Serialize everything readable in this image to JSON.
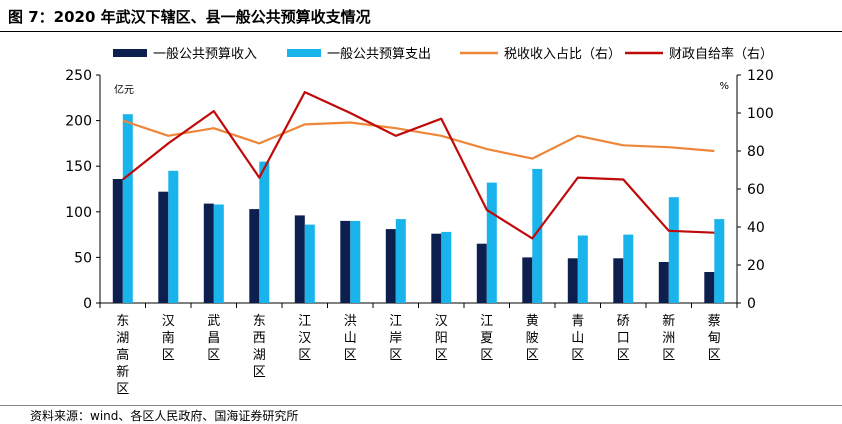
{
  "page": {
    "title": "图 7：2020 年武汉下辖区、县一般公共预算收支情况",
    "source": "资料来源：wind、各区人民政府、国海证券研究所"
  },
  "chart_data": {
    "type": "bar",
    "title": "2020 年武汉下辖区、县一般公共预算收支情况",
    "categories": [
      "东湖高新区",
      "汉南区",
      "武昌区",
      "东西湖区",
      "江汉区",
      "洪山区",
      "江岸区",
      "汉阳区",
      "江夏区",
      "黄陂区",
      "青山区",
      "硚口区",
      "新洲区",
      "蔡甸区"
    ],
    "category_labels": [
      [
        "东",
        "湖",
        "高",
        "新",
        "区"
      ],
      [
        "汉",
        "南",
        "区"
      ],
      [
        "武",
        "昌",
        "区"
      ],
      [
        "东",
        "西",
        "湖",
        "区"
      ],
      [
        "江",
        "汉",
        "区"
      ],
      [
        "洪",
        "山",
        "区"
      ],
      [
        "江",
        "岸",
        "区"
      ],
      [
        "汉",
        "阳",
        "区"
      ],
      [
        "江",
        "夏",
        "区"
      ],
      [
        "黄",
        "陂",
        "区"
      ],
      [
        "青",
        "山",
        "区"
      ],
      [
        "硚",
        "口",
        "区"
      ],
      [
        "新",
        "洲",
        "区"
      ],
      [
        "蔡",
        "甸",
        "区"
      ]
    ],
    "ylabel_left": "亿元",
    "ylabel_right": "%",
    "ylim_left": [
      0,
      250
    ],
    "ylim_right": [
      0,
      120
    ],
    "yticks_left": [
      0,
      50,
      100,
      150,
      200,
      250
    ],
    "yticks_right": [
      0,
      20,
      40,
      60,
      80,
      100,
      120
    ],
    "legend_position": "top",
    "grid": false,
    "series": [
      {
        "name": "一般公共预算收入",
        "type": "bar",
        "axis": "left",
        "color": "#0d1f4f",
        "values": [
          136,
          122,
          109,
          103,
          96,
          90,
          81,
          76,
          65,
          50,
          49,
          49,
          45,
          34
        ]
      },
      {
        "name": "一般公共预算支出",
        "type": "bar",
        "axis": "left",
        "color": "#19b4ec",
        "values": [
          207,
          145,
          108,
          155,
          86,
          90,
          92,
          78,
          132,
          147,
          74,
          75,
          116,
          92
        ]
      },
      {
        "name": "税收收入占比（右）",
        "type": "line",
        "axis": "right",
        "color": "#ee8639",
        "values": [
          96,
          88,
          92,
          84,
          94,
          95,
          92,
          88,
          81,
          76,
          88,
          83,
          82,
          80
        ]
      },
      {
        "name": "财政自给率（右）",
        "type": "line",
        "axis": "right",
        "color": "#c00a0a",
        "values": [
          65,
          84,
          101,
          66,
          111,
          100,
          88,
          97,
          49,
          34,
          66,
          65,
          38,
          37
        ]
      }
    ]
  }
}
